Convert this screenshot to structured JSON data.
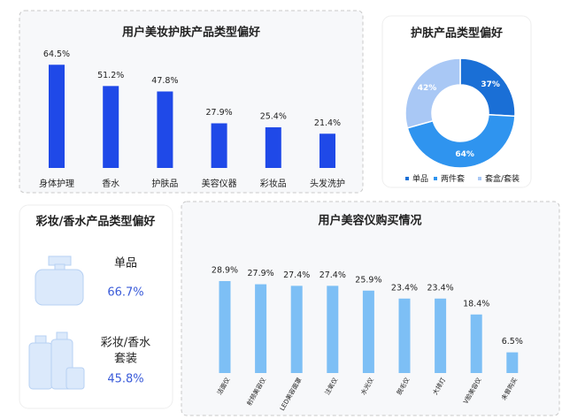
{
  "chart_data": [
    {
      "type": "bar",
      "title": "用户美妆护肤产品类型偏好",
      "color": "#1f49e8",
      "categories": [
        "身体护理",
        "香水",
        "护肤品",
        "美容仪器",
        "彩妆品",
        "头发洗护"
      ],
      "values": [
        64.5,
        51.2,
        47.8,
        27.9,
        25.4,
        21.4
      ],
      "value_labels": [
        "64.5%",
        "51.2%",
        "47.8%",
        "27.9%",
        "25.4%",
        "21.4%"
      ]
    },
    {
      "type": "pie",
      "title": "护肤产品类型偏好",
      "donut": true,
      "series": [
        {
          "name": "单品",
          "color": "#1a6fd6",
          "values": [
            37
          ],
          "value_labels": [
            "37%"
          ]
        },
        {
          "name": "两件套",
          "color": "#2f94ef",
          "values": [
            64
          ],
          "value_labels": [
            "64%"
          ]
        },
        {
          "name": "套盒/套装",
          "color": "#a9c8f5",
          "values": [
            42
          ],
          "value_labels": [
            "42%"
          ]
        }
      ]
    },
    {
      "type": "bar",
      "title": "用户美容仪购买情况",
      "color": "#7dbff5",
      "categories": [
        "洁面仪",
        "射频美容仪",
        "LED美容面罩",
        "注氧仪",
        "水光仪",
        "脱毛仪",
        "大排灯",
        "V脸美容仪",
        "未曾购买"
      ],
      "values": [
        28.9,
        27.9,
        27.4,
        27.4,
        25.9,
        23.4,
        23.4,
        18.4,
        6.5
      ],
      "value_labels": [
        "28.9%",
        "27.9%",
        "27.4%",
        "27.4%",
        "25.9%",
        "23.4%",
        "23.4%",
        "18.4%",
        "6.5%"
      ]
    }
  ],
  "panel": {
    "title": "彩妆/香水产品类型偏好",
    "items": [
      {
        "label": [
          "单品"
        ],
        "value_label": "66.7%"
      },
      {
        "label": [
          "彩妆/香水",
          "套装"
        ],
        "value_label": "45.8%"
      }
    ]
  }
}
